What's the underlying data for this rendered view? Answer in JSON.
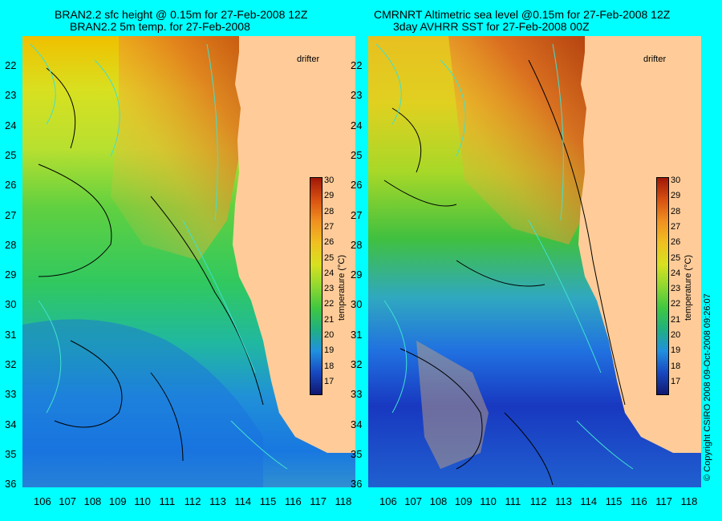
{
  "left": {
    "title1": "BRAN2.2 sfc height @ 0.15m for 27-Feb-2008 12Z",
    "title2": "BRAN2.2 5m temp. for 27-Feb-2008"
  },
  "right": {
    "title1": "CMRNRT Altimetric sea level  @0.15m  for 27-Feb-2008 12Z",
    "title2": "3day AVHRR SST for 27-Feb-2008 00Z"
  },
  "drifter_label": "drifter",
  "lat_labels": [
    "22",
    "23",
    "24",
    "25",
    "26",
    "27",
    "28",
    "29",
    "30",
    "31",
    "32",
    "33",
    "34",
    "35",
    "36"
  ],
  "lon_labels": [
    "106",
    "107",
    "108",
    "109",
    "110",
    "111",
    "112",
    "113",
    "114",
    "115",
    "116",
    "117",
    "118"
  ],
  "colorbar": {
    "ticks": [
      "30",
      "29",
      "28",
      "27",
      "26",
      "25",
      "24",
      "23",
      "22",
      "21",
      "20",
      "19",
      "18",
      "17"
    ],
    "label": "temperature (°C)"
  },
  "copyright": "© Copyright CSIRO 2008   09-Oct-2008 09:26:07",
  "colors": {
    "background": "#00ffff",
    "land": "#ffcc99"
  }
}
